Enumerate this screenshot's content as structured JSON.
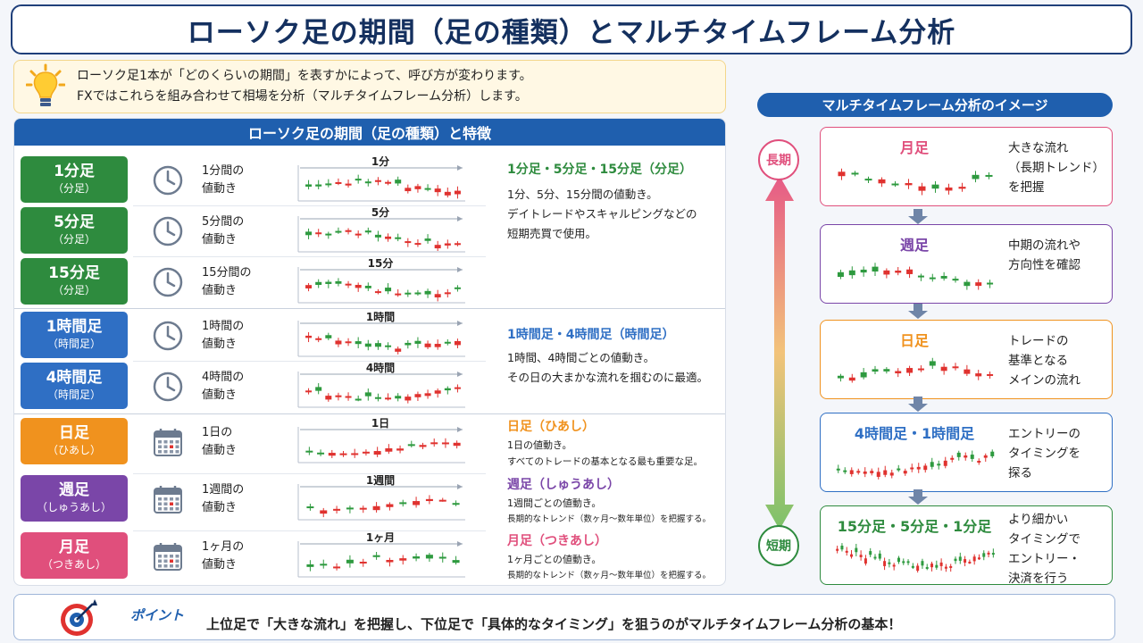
{
  "title": "ローソク足の期間（足の種類）とマルチタイムフレーム分析",
  "intro": {
    "line1": "ローソク足1本が「どのくらいの期間」を表すかによって、呼び方が変わります。",
    "line2": "FXではこれらを組み合わせて相場を分析（マルチタイムフレーム分析）します。",
    "icon": "lightbulb-icon"
  },
  "left_header": "ローソク足の期間（足の種類）と特徴",
  "rows": [
    {
      "name": "1分足",
      "sub": "（分足）",
      "desc1": "1分間の",
      "desc2": "値動き",
      "chart_label": "1分",
      "icon": "clock-icon",
      "color": "#2e8b3e"
    },
    {
      "name": "5分足",
      "sub": "（分足）",
      "desc1": "5分間の",
      "desc2": "値動き",
      "chart_label": "5分",
      "icon": "clock-icon",
      "color": "#2e8b3e"
    },
    {
      "name": "15分足",
      "sub": "（分足）",
      "desc1": "15分間の",
      "desc2": "値動き",
      "chart_label": "15分",
      "icon": "clock-icon",
      "color": "#2e8b3e"
    },
    {
      "name": "1時間足",
      "sub": "（時間足）",
      "desc1": "1時間の",
      "desc2": "値動き",
      "chart_label": "1時間",
      "icon": "clock-icon",
      "color": "#2f6fc4"
    },
    {
      "name": "4時間足",
      "sub": "（時間足）",
      "desc1": "4時間の",
      "desc2": "値動き",
      "chart_label": "4時間",
      "icon": "clock-icon",
      "color": "#2f6fc4"
    },
    {
      "name": "日足",
      "sub": "（ひあし）",
      "desc1": "1日の",
      "desc2": "値動き",
      "chart_label": "1日",
      "icon": "calendar-icon",
      "color": "#f0921e"
    },
    {
      "name": "週足",
      "sub": "（しゅうあし）",
      "desc1": "1週間の",
      "desc2": "値動き",
      "chart_label": "1週間",
      "icon": "calendar-icon",
      "color": "#7a46a8"
    },
    {
      "name": "月足",
      "sub": "（つきあし）",
      "desc1": "1ヶ月の",
      "desc2": "値動き",
      "chart_label": "1ヶ月",
      "icon": "calendar-icon",
      "color": "#e04f7c"
    }
  ],
  "groups": {
    "minute": {
      "title": "1分足・5分足・15分足（分足）",
      "l1": "1分、5分、15分間の値動き。",
      "l2": "デイトレードやスキャルピングなどの",
      "l3": "短期売買で使用。",
      "color": "#2e8b3e"
    },
    "hour": {
      "title": "1時間足・4時間足（時間足）",
      "l1": "1時間、4時間ごとの値動き。",
      "l2": "その日の大まかな流れを掴むのに最適。",
      "color": "#2f6fc4"
    },
    "day": {
      "title": "日足（ひあし）",
      "l1": "1日の値動き。",
      "l2": "すべてのトレードの基本となる最も重要な足。",
      "color": "#f0921e"
    },
    "week": {
      "title": "週足（しゅうあし）",
      "l1": "1週間ごとの値動き。",
      "l2": "長期的なトレンド（数ヶ月〜数年単位）を把握する。",
      "color": "#7a46a8"
    },
    "month": {
      "title": "月足（つきあし）",
      "l1": "1ヶ月ごとの値動き。",
      "l2": "長期的なトレンド（数ヶ月〜数年単位）を把握する。",
      "color": "#e04f7c"
    }
  },
  "right_header": "マルチタイムフレーム分析のイメージ",
  "long_label": "長期",
  "short_label": "短期",
  "timeframes": [
    {
      "title": "月足",
      "d1": "大きな流れ",
      "d2": "（長期トレンド）",
      "d3": "を把握",
      "color": "#e04f7c"
    },
    {
      "title": "週足",
      "d1": "中期の流れや",
      "d2": "方向性を確認",
      "d3": "",
      "color": "#7a46a8"
    },
    {
      "title": "日足",
      "d1": "トレードの",
      "d2": "基準となる",
      "d3": "メインの流れ",
      "color": "#f0921e"
    },
    {
      "title": "4時間足・1時間足",
      "d1": "エントリーの",
      "d2": "タイミングを",
      "d3": "探る",
      "color": "#2f6fc4"
    },
    {
      "title": "15分足・5分足・1分足",
      "d1": "より細かい",
      "d2": "タイミングで",
      "d3": "エントリー・",
      "d4": "決済を行う",
      "color": "#2e8b3e"
    }
  ],
  "point": {
    "label": "ポイント",
    "text": "上位足で「大きな流れ」を把握し、下位足で「具体的なタイミング」を狙うのがマルチタイムフレーム分析の基本！",
    "icon": "target-icon"
  },
  "colors": {
    "up": "#2e9a3f",
    "down": "#e0322f",
    "navy": "#1f5fae"
  }
}
